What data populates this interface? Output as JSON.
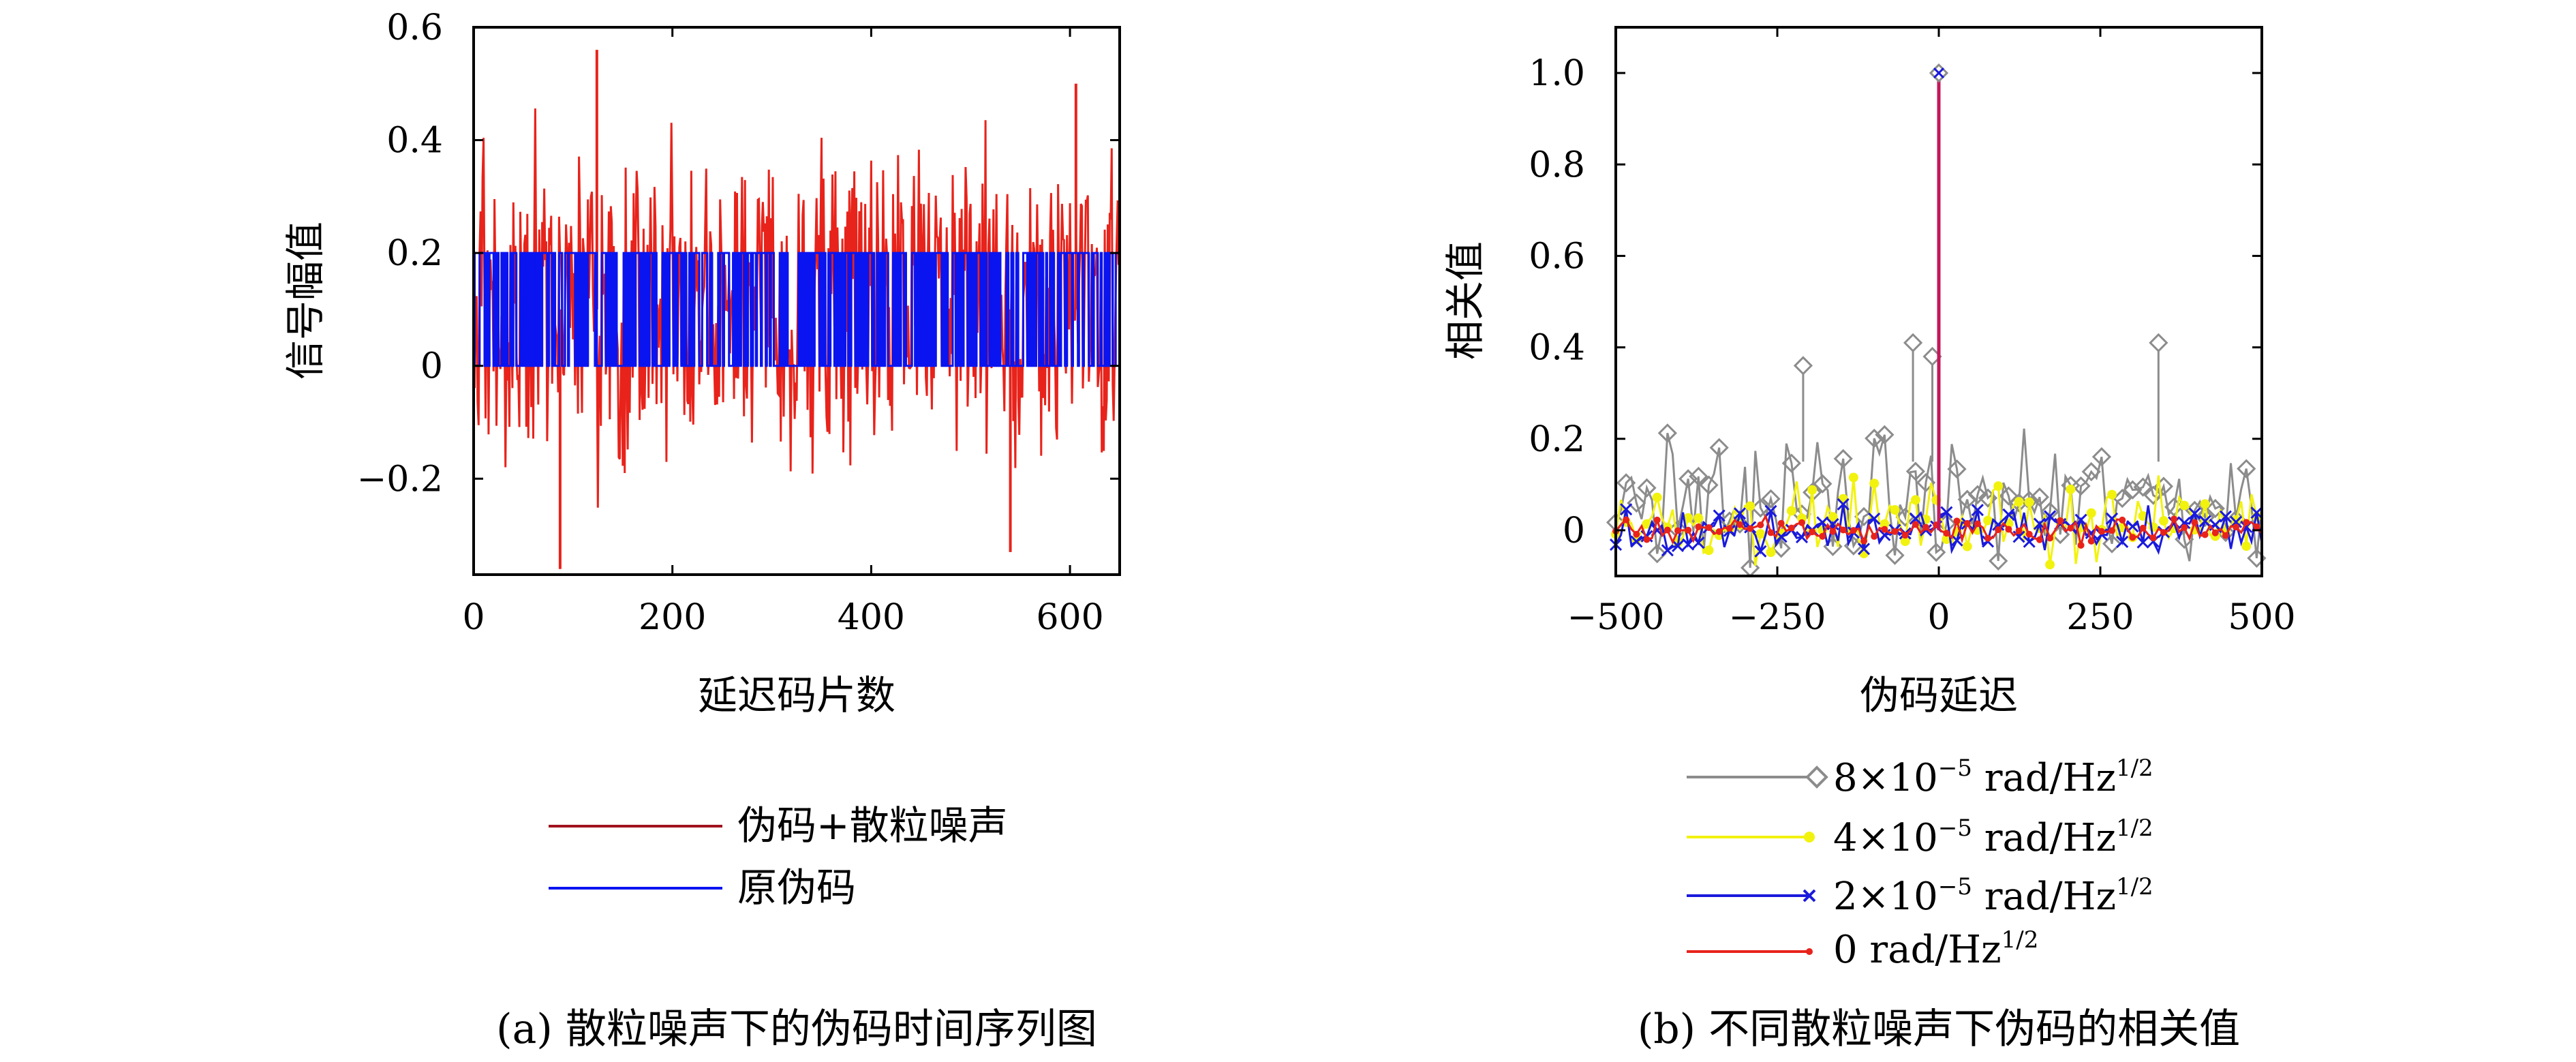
{
  "chart_data": [
    {
      "type": "line",
      "panel": "a",
      "xlabel": "延迟码片数",
      "ylabel": "信号幅值",
      "xlim": [
        0,
        650
      ],
      "ylim": [
        -0.37,
        0.6
      ],
      "xticks": [
        0,
        200,
        400,
        600
      ],
      "xticklabels": [
        "0",
        "200",
        "400",
        "600"
      ],
      "yticks": [
        0.6,
        0.4,
        0.2,
        0,
        -0.2
      ],
      "yticklabels": [
        "0.6",
        "0.4",
        "0.2",
        "0",
        "−0.2"
      ],
      "legend": {
        "placement": "below"
      },
      "series": [
        {
          "name": "伪码+散粒噪声",
          "color": "#e8231b",
          "description": "pseudo-code plus shot noise, approx. 650 samples, values between -0.36 and 0.56",
          "min": -0.36,
          "max": 0.56,
          "peaks": [
            {
              "x": 124,
              "y": 0.56
            },
            {
              "x": 87,
              "y": -0.36
            },
            {
              "x": 540,
              "y": -0.33
            },
            {
              "x": 606,
              "y": 0.5
            }
          ]
        },
        {
          "name": "原伪码",
          "color": "#0a14f0",
          "description": "binary pseudo-code, values 0 or 0.2, approx. 650 samples",
          "levels": [
            0,
            0.2
          ]
        }
      ],
      "caption": "(a) 散粒噪声下的伪码时间序列图"
    },
    {
      "type": "line",
      "panel": "b",
      "xlabel": "伪码延迟",
      "ylabel": "相关值",
      "xlim": [
        -500,
        500
      ],
      "ylim": [
        -0.1,
        1.1
      ],
      "xticks": [
        -500,
        -250,
        0,
        250,
        500
      ],
      "xticklabels": [
        "−500",
        "−250",
        "0",
        "250",
        "500"
      ],
      "yticks": [
        1.0,
        0.8,
        0.6,
        0.4,
        0.2,
        0
      ],
      "yticklabels": [
        "1.0",
        "0.8",
        "0.6",
        "0.4",
        "0.2",
        "0"
      ],
      "legend": {
        "placement": "below"
      },
      "series": [
        {
          "name_parts": [
            "8×10",
            "−5",
            " rad/Hz",
            "1/2"
          ],
          "color": "#8c8c8c",
          "marker": "diamond",
          "peak": {
            "x": 0,
            "y": 1.0
          },
          "sidelobe_range": [
            -0.1,
            0.41
          ]
        },
        {
          "name_parts": [
            "4×10",
            "−5",
            " rad/Hz",
            "1/2"
          ],
          "color": "#f2f20f",
          "marker": "dot",
          "peak": {
            "x": 0,
            "y": 1.0
          },
          "sidelobe_range": [
            -0.1,
            0.2
          ]
        },
        {
          "name_parts": [
            "2×10",
            "−5",
            " rad/Hz",
            "1/2"
          ],
          "color": "#1a1adc",
          "marker": "x",
          "peak": {
            "x": 0,
            "y": 1.0
          },
          "sidelobe_range": [
            -0.09,
            0.1
          ]
        },
        {
          "name_parts": [
            "0 rad/Hz",
            "1/2",
            "",
            ""
          ],
          "color": "#e8231b",
          "marker": "dot",
          "peak": {
            "x": 0,
            "y": 1.0
          },
          "sidelobe_range": [
            -0.05,
            0.05
          ]
        }
      ],
      "caption": "(b) 不同散粒噪声下伪码的相关值"
    }
  ]
}
